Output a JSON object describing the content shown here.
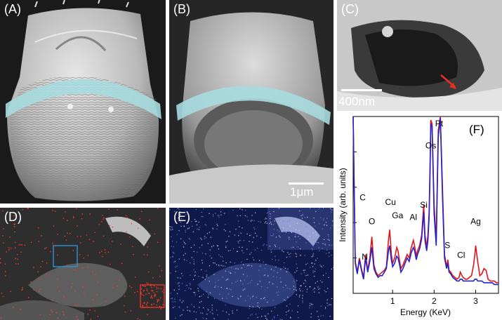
{
  "figure": {
    "panel_labels": {
      "A": "(A)",
      "B": "(B)",
      "C": "(C)",
      "D": "(D)",
      "E": "(E)",
      "F": "(F)"
    },
    "scale_bars": {
      "B": "1μm",
      "C": "400nm"
    },
    "colors": {
      "spectrum_red": "#e0141b",
      "spectrum_blue": "#2323c8",
      "highlight_band": "#a6dbe0",
      "roi_blue": "#2a8fd0",
      "roi_red": "#e0302a",
      "arrow_red": "#e83020"
    }
  },
  "chart_data": {
    "type": "line",
    "xlabel": "Energy (KeV)",
    "ylabel": "Intensity (arb. units)",
    "xlim": [
      0.05,
      3.55
    ],
    "ylim": [
      0,
      1.0
    ],
    "xticks": [
      1,
      2,
      3
    ],
    "grid": false,
    "legend": "none",
    "annotations": [
      {
        "text": "C",
        "x": 0.28,
        "y": 0.525
      },
      {
        "text": "N",
        "x": 0.33,
        "y": 0.19
      },
      {
        "text": "O",
        "x": 0.5,
        "y": 0.39
      },
      {
        "text": "Cu",
        "x": 0.95,
        "y": 0.5
      },
      {
        "text": "Ga",
        "x": 1.12,
        "y": 0.425
      },
      {
        "text": "Al",
        "x": 1.5,
        "y": 0.415
      },
      {
        "text": "Si",
        "x": 1.75,
        "y": 0.485
      },
      {
        "text": "Os",
        "x": 1.92,
        "y": 0.82
      },
      {
        "text": "Pt",
        "x": 2.12,
        "y": 0.945
      },
      {
        "text": "S",
        "x": 2.32,
        "y": 0.255
      },
      {
        "text": "Cl",
        "x": 2.65,
        "y": 0.2
      },
      {
        "text": "Ag",
        "x": 3.0,
        "y": 0.39
      }
    ],
    "series": [
      {
        "color": "#e0141b",
        "x": [
          0.05,
          0.1,
          0.15,
          0.2,
          0.25,
          0.3,
          0.35,
          0.4,
          0.45,
          0.5,
          0.55,
          0.6,
          0.65,
          0.7,
          0.75,
          0.8,
          0.85,
          0.9,
          0.93,
          0.97,
          1.0,
          1.05,
          1.1,
          1.13,
          1.17,
          1.2,
          1.25,
          1.3,
          1.35,
          1.4,
          1.45,
          1.5,
          1.53,
          1.57,
          1.6,
          1.65,
          1.7,
          1.75,
          1.78,
          1.82,
          1.85,
          1.88,
          1.9,
          1.92,
          1.95,
          2.0,
          2.05,
          2.1,
          2.15,
          2.2,
          2.25,
          2.3,
          2.33,
          2.36,
          2.4,
          2.45,
          2.5,
          2.55,
          2.6,
          2.63,
          2.67,
          2.7,
          2.75,
          2.8,
          2.85,
          2.9,
          2.95,
          2.98,
          3.0,
          3.02,
          3.05,
          3.1,
          3.15,
          3.2,
          3.25,
          3.3,
          3.35,
          3.4,
          3.45,
          3.5,
          3.55
        ],
        "y": [
          1.0,
          0.18,
          0.12,
          0.2,
          0.14,
          0.09,
          0.22,
          0.13,
          0.2,
          0.32,
          0.16,
          0.12,
          0.1,
          0.11,
          0.12,
          0.13,
          0.15,
          0.3,
          0.36,
          0.22,
          0.17,
          0.2,
          0.26,
          0.24,
          0.18,
          0.14,
          0.16,
          0.19,
          0.22,
          0.2,
          0.26,
          0.3,
          0.27,
          0.21,
          0.24,
          0.27,
          0.33,
          0.5,
          0.33,
          0.26,
          0.33,
          0.46,
          0.7,
          0.98,
          0.96,
          0.5,
          0.3,
          0.92,
          1.0,
          0.6,
          0.22,
          0.15,
          0.19,
          0.13,
          0.12,
          0.1,
          0.09,
          0.08,
          0.09,
          0.12,
          0.1,
          0.09,
          0.08,
          0.08,
          0.09,
          0.1,
          0.16,
          0.22,
          0.27,
          0.23,
          0.18,
          0.1,
          0.11,
          0.14,
          0.13,
          0.08,
          0.07,
          0.07,
          0.07,
          0.06,
          0.06
        ]
      },
      {
        "color": "#2323c8",
        "x": [
          0.05,
          0.1,
          0.15,
          0.2,
          0.25,
          0.3,
          0.35,
          0.4,
          0.45,
          0.5,
          0.55,
          0.6,
          0.65,
          0.7,
          0.75,
          0.8,
          0.85,
          0.9,
          0.93,
          0.97,
          1.0,
          1.05,
          1.1,
          1.13,
          1.17,
          1.2,
          1.25,
          1.3,
          1.35,
          1.4,
          1.45,
          1.5,
          1.53,
          1.57,
          1.6,
          1.65,
          1.7,
          1.75,
          1.78,
          1.82,
          1.85,
          1.88,
          1.9,
          1.92,
          1.95,
          2.0,
          2.05,
          2.1,
          2.15,
          2.2,
          2.25,
          2.3,
          2.33,
          2.36,
          2.4,
          2.45,
          2.5,
          2.55,
          2.6,
          2.63,
          2.67,
          2.7,
          2.75,
          2.8,
          2.85,
          2.9,
          2.95,
          2.98,
          3.0,
          3.02,
          3.05,
          3.1,
          3.15,
          3.2,
          3.25,
          3.3,
          3.35,
          3.4,
          3.45,
          3.5,
          3.55
        ],
        "y": [
          1.0,
          0.17,
          0.11,
          0.19,
          0.13,
          0.08,
          0.2,
          0.12,
          0.18,
          0.26,
          0.14,
          0.11,
          0.09,
          0.1,
          0.1,
          0.12,
          0.14,
          0.24,
          0.27,
          0.19,
          0.15,
          0.17,
          0.21,
          0.2,
          0.16,
          0.12,
          0.14,
          0.17,
          0.2,
          0.18,
          0.23,
          0.26,
          0.24,
          0.19,
          0.22,
          0.25,
          0.31,
          0.46,
          0.3,
          0.24,
          0.3,
          0.43,
          0.65,
          0.96,
          0.94,
          0.45,
          0.27,
          0.88,
          0.99,
          0.55,
          0.2,
          0.14,
          0.17,
          0.12,
          0.11,
          0.09,
          0.08,
          0.07,
          0.07,
          0.08,
          0.08,
          0.07,
          0.07,
          0.07,
          0.07,
          0.07,
          0.07,
          0.08,
          0.08,
          0.08,
          0.07,
          0.07,
          0.07,
          0.06,
          0.06,
          0.06,
          0.06,
          0.06,
          0.05,
          0.05,
          0.05
        ]
      }
    ]
  }
}
